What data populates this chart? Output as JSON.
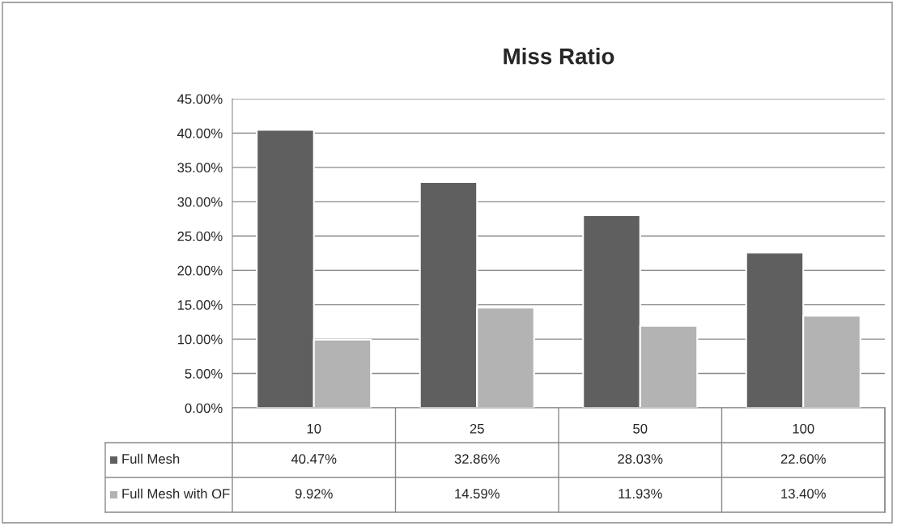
{
  "chart_data": {
    "type": "bar",
    "title": "Miss Ratio",
    "categories": [
      "10",
      "25",
      "50",
      "100"
    ],
    "series": [
      {
        "name": "Full Mesh",
        "color": "#5f5f5f",
        "values": [
          40.47,
          32.86,
          28.03,
          22.6
        ],
        "value_labels": [
          "40.47%",
          "32.86%",
          "28.03%",
          "22.60%"
        ]
      },
      {
        "name": "Full Mesh with OF",
        "color": "#b3b3b3",
        "values": [
          9.92,
          14.59,
          11.93,
          13.4
        ],
        "value_labels": [
          "9.92%",
          "14.59%",
          "11.93%",
          "13.40%"
        ]
      }
    ],
    "ylim": [
      0,
      45
    ],
    "yticks": [
      {
        "value": 0,
        "label": "0.00%"
      },
      {
        "value": 5,
        "label": "5.00%"
      },
      {
        "value": 10,
        "label": "10.00%"
      },
      {
        "value": 15,
        "label": "15.00%"
      },
      {
        "value": 20,
        "label": "20.00%"
      },
      {
        "value": 25,
        "label": "25.00%"
      },
      {
        "value": 30,
        "label": "30.00%"
      },
      {
        "value": 35,
        "label": "35.00%"
      },
      {
        "value": 40,
        "label": "40.00%"
      },
      {
        "value": 45,
        "label": "45.00%"
      }
    ],
    "grid": "y",
    "legend": "bottom"
  }
}
